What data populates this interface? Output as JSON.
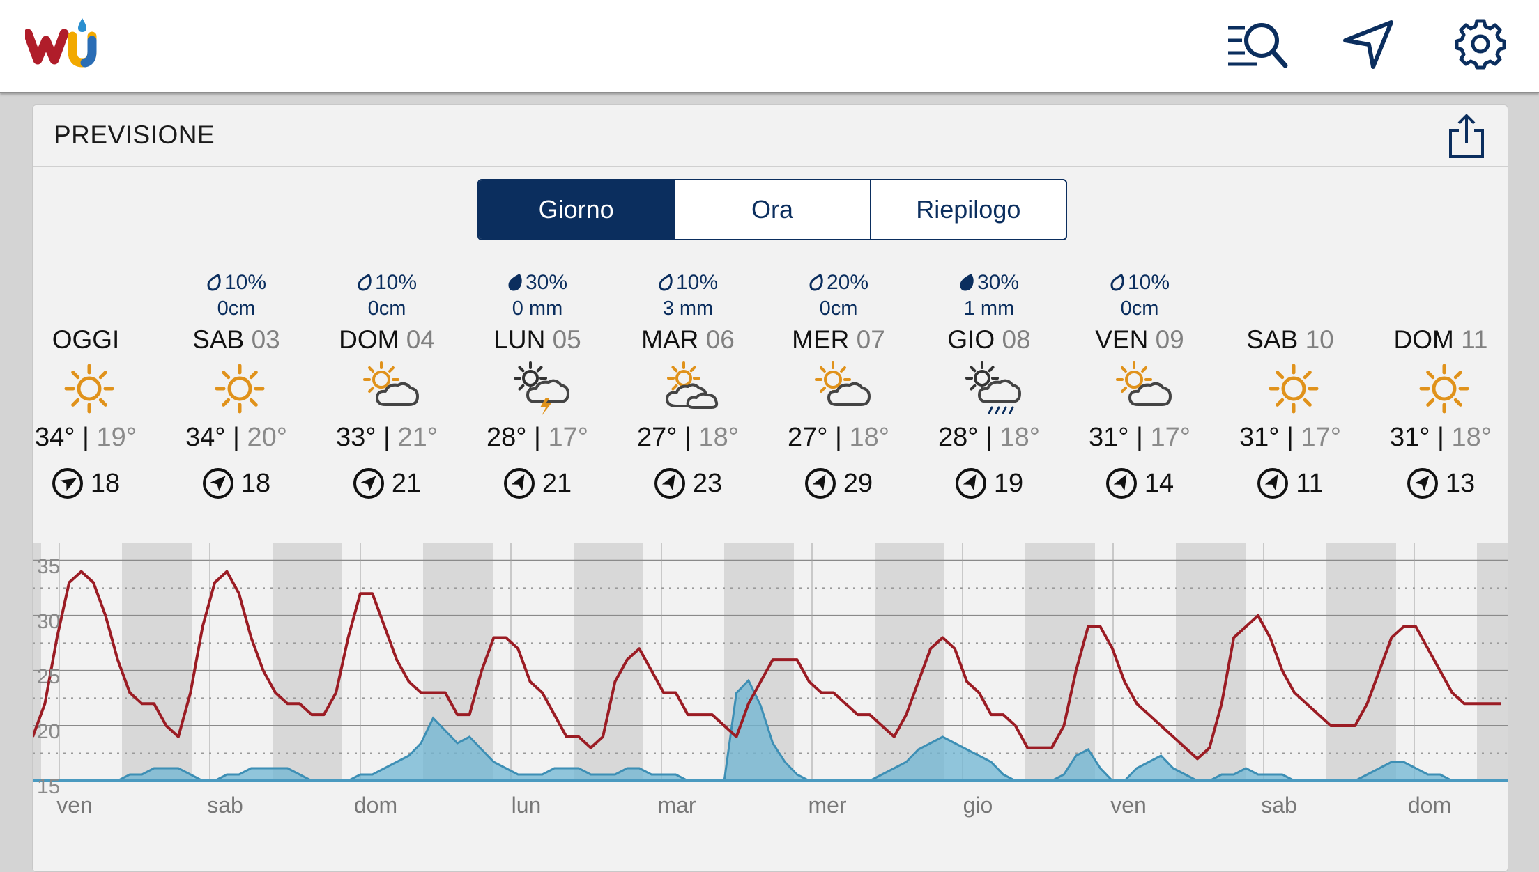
{
  "app": {
    "logo_text": "wu"
  },
  "card": {
    "title": "PREVISIONE"
  },
  "tabs": [
    {
      "label": "Giorno",
      "active": true
    },
    {
      "label": "Ora",
      "active": false
    },
    {
      "label": "Riepilogo",
      "active": false
    }
  ],
  "days": [
    {
      "name": "OGGI",
      "num": "",
      "precip": "",
      "amount": "",
      "icon": "sun-icon",
      "high": "34°",
      "low": "19°",
      "wind": "18",
      "wind_dir_deg": 60
    },
    {
      "name": "SAB",
      "num": "03",
      "precip": "10%",
      "amount": "0cm",
      "icon": "sun-icon",
      "high": "34°",
      "low": "20°",
      "wind": "18",
      "wind_dir_deg": 45
    },
    {
      "name": "DOM",
      "num": "04",
      "precip": "10%",
      "amount": "0cm",
      "icon": "partly-cloudy-icon",
      "high": "33°",
      "low": "21°",
      "wind": "21",
      "wind_dir_deg": 45
    },
    {
      "name": "LUN",
      "num": "05",
      "precip": "30%",
      "amount": "0 mm",
      "icon": "thunderstorm-icon",
      "high": "28°",
      "low": "17°",
      "wind": "21",
      "wind_dir_deg": 30
    },
    {
      "name": "MAR",
      "num": "06",
      "precip": "10%",
      "amount": "3 mm",
      "icon": "mostly-cloudy-icon",
      "high": "27°",
      "low": "18°",
      "wind": "23",
      "wind_dir_deg": 30
    },
    {
      "name": "MER",
      "num": "07",
      "precip": "20%",
      "amount": "0cm",
      "icon": "partly-cloudy-icon",
      "high": "27°",
      "low": "18°",
      "wind": "29",
      "wind_dir_deg": 30
    },
    {
      "name": "GIO",
      "num": "08",
      "precip": "30%",
      "amount": "1 mm",
      "icon": "rain-icon",
      "high": "28°",
      "low": "18°",
      "wind": "19",
      "wind_dir_deg": 30
    },
    {
      "name": "VEN",
      "num": "09",
      "precip": "10%",
      "amount": "0cm",
      "icon": "partly-cloudy-icon",
      "high": "31°",
      "low": "17°",
      "wind": "14",
      "wind_dir_deg": 30
    },
    {
      "name": "SAB",
      "num": "10",
      "precip": "",
      "amount": "",
      "icon": "sun-icon",
      "high": "31°",
      "low": "17°",
      "wind": "11",
      "wind_dir_deg": 30
    },
    {
      "name": "DOM",
      "num": "11",
      "precip": "",
      "amount": "",
      "icon": "sun-icon",
      "high": "31°",
      "low": "18°",
      "wind": "13",
      "wind_dir_deg": 40
    }
  ],
  "chart_data": {
    "type": "line",
    "y_ticks": [
      "35",
      "30",
      "25",
      "20",
      "15"
    ],
    "ylim": [
      15,
      36
    ],
    "x_labels": [
      "ven",
      "sab",
      "dom",
      "lun",
      "mar",
      "mer",
      "gio",
      "ven",
      "sab",
      "dom"
    ],
    "series": [
      {
        "color": "#9b1c24",
        "values": [
          19,
          22,
          28,
          33,
          34,
          33,
          30,
          26,
          23,
          22,
          22,
          20,
          19,
          23,
          29,
          33,
          34,
          32,
          28,
          25,
          23,
          22,
          22,
          21,
          21,
          23,
          28,
          32,
          32,
          29,
          26,
          24,
          23,
          23,
          23,
          21,
          21,
          25,
          28,
          28,
          27,
          24,
          23,
          21,
          19,
          19,
          18,
          19,
          24,
          26,
          27,
          25,
          23,
          23,
          21,
          21,
          21,
          20,
          19,
          22,
          24,
          26,
          26,
          26,
          24,
          23,
          23,
          22,
          21,
          21,
          20,
          19,
          21,
          24,
          27,
          28,
          27,
          24,
          23,
          21,
          21,
          20,
          18,
          18,
          18,
          20,
          25,
          29,
          29,
          27,
          24,
          22,
          21,
          20,
          19,
          18,
          17,
          18,
          22,
          28,
          29,
          30,
          28,
          25,
          23,
          22,
          21,
          20,
          20,
          20,
          22,
          25,
          28,
          29,
          29,
          27,
          25,
          23,
          22,
          22,
          22,
          22
        ]
      },
      {
        "color": "#5aabc9",
        "values": [
          0,
          0,
          0,
          0,
          0,
          0,
          0,
          0,
          1,
          1,
          2,
          2,
          2,
          1,
          0,
          0,
          1,
          1,
          2,
          2,
          2,
          2,
          1,
          0,
          0,
          0,
          0,
          1,
          1,
          2,
          3,
          4,
          6,
          10,
          8,
          6,
          7,
          5,
          3,
          2,
          1,
          1,
          1,
          2,
          2,
          2,
          1,
          1,
          1,
          2,
          2,
          1,
          1,
          1,
          0,
          0,
          0,
          0,
          14,
          16,
          12,
          6,
          3,
          1,
          0,
          0,
          0,
          0,
          0,
          0,
          1,
          2,
          3,
          5,
          6,
          7,
          6,
          5,
          4,
          3,
          1,
          0,
          0,
          0,
          0,
          1,
          4,
          5,
          2,
          0,
          0,
          2,
          3,
          4,
          2,
          1,
          0,
          0,
          1,
          1,
          2,
          1,
          1,
          1,
          0,
          0,
          0,
          0,
          0,
          0,
          1,
          2,
          3,
          3,
          2,
          1,
          1,
          0,
          0,
          0,
          0,
          0
        ]
      }
    ]
  }
}
